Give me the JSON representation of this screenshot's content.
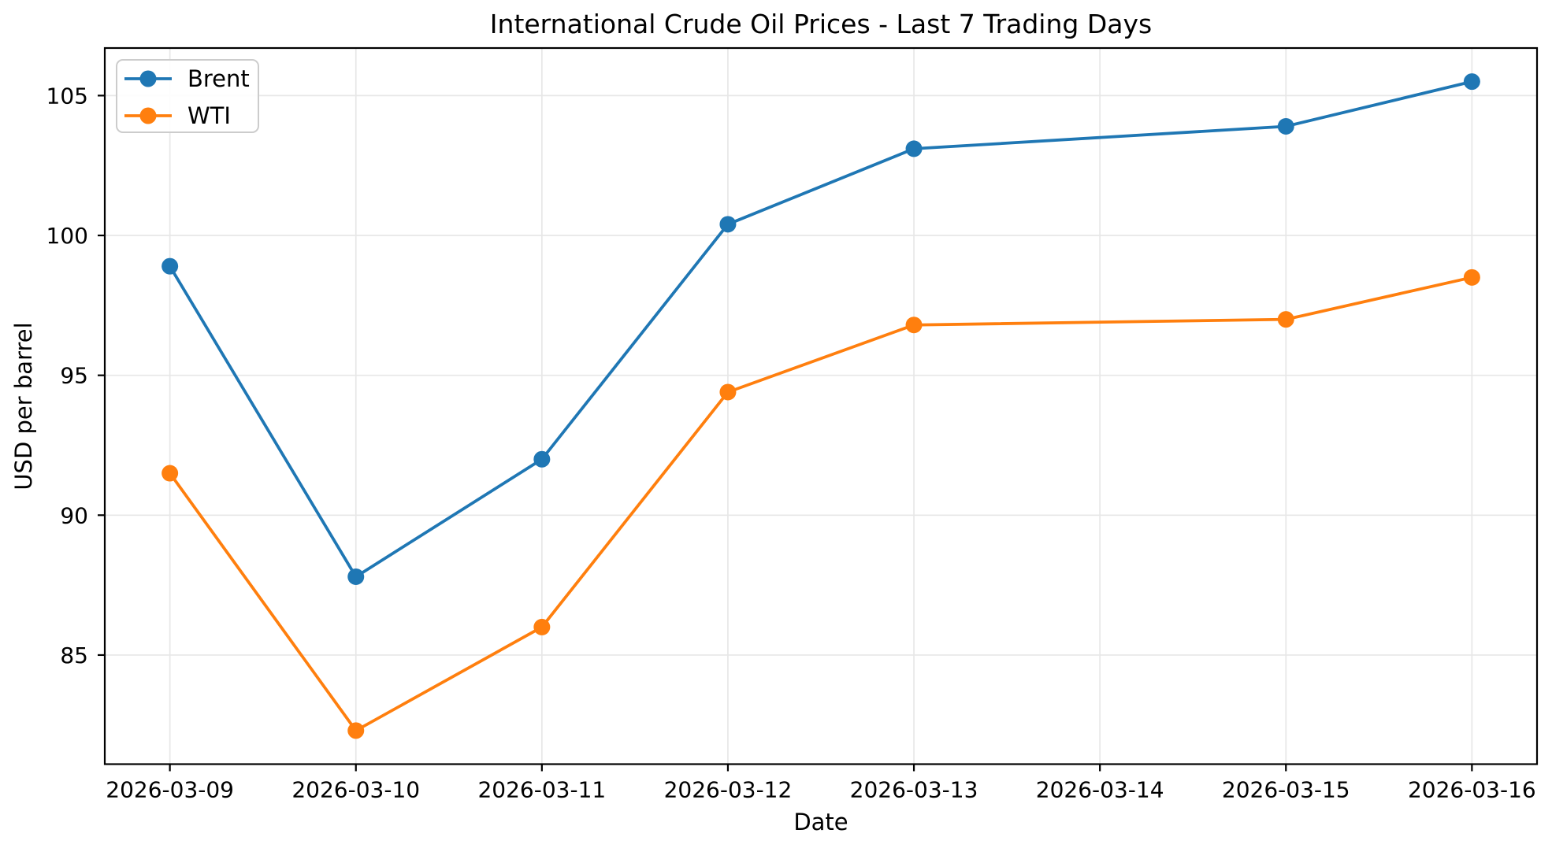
{
  "chart_data": {
    "type": "line",
    "title": "International Crude Oil Prices - Last 7 Trading Days",
    "xlabel": "Date",
    "ylabel": "USD per barrel",
    "x_tick_labels": [
      "2026-03-09",
      "2026-03-10",
      "2026-03-11",
      "2026-03-12",
      "2026-03-13",
      "2026-03-14",
      "2026-03-15",
      "2026-03-16"
    ],
    "y_tick_labels": [
      "85",
      "90",
      "95",
      "100",
      "105"
    ],
    "y_ticks": [
      85,
      90,
      95,
      100,
      105
    ],
    "ylim": [
      81.1,
      106.7
    ],
    "grid": true,
    "legend_position": "upper left",
    "series": [
      {
        "name": "Brent",
        "color": "#1f77b4",
        "dates": [
          "2026-03-09",
          "2026-03-10",
          "2026-03-11",
          "2026-03-12",
          "2026-03-13",
          "2026-03-15",
          "2026-03-16"
        ],
        "values": [
          98.9,
          87.8,
          92.0,
          100.4,
          103.1,
          103.9,
          105.5
        ]
      },
      {
        "name": "WTI",
        "color": "#ff7f0e",
        "dates": [
          "2026-03-09",
          "2026-03-10",
          "2026-03-11",
          "2026-03-12",
          "2026-03-13",
          "2026-03-15",
          "2026-03-16"
        ],
        "values": [
          91.5,
          82.3,
          86.0,
          94.4,
          96.8,
          97.0,
          98.5
        ]
      }
    ]
  },
  "style": {
    "grid_color": "#e7e7e7",
    "axis_color": "#000000",
    "background_color": "#ffffff",
    "legend_border_color": "#cccccc",
    "legend_fill_color": "#ffffff"
  }
}
